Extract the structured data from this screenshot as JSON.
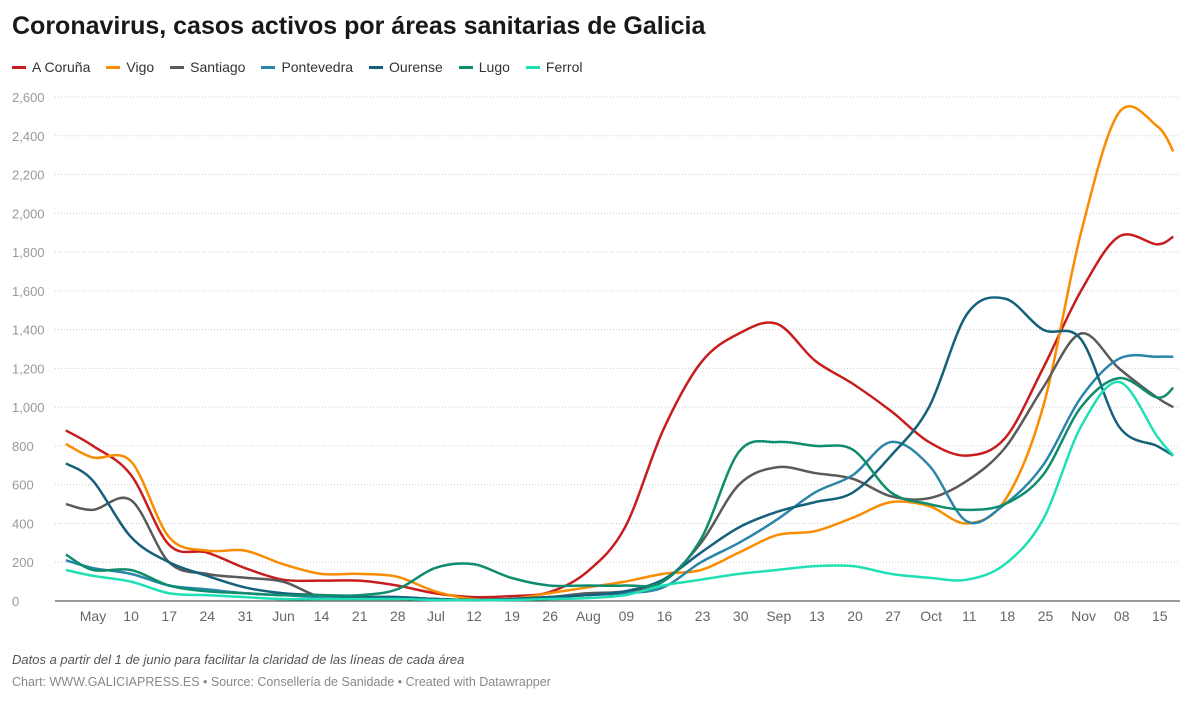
{
  "chart_data": {
    "type": "line",
    "title": "Coronavirus, casos activos por áreas sanitarias de Galicia",
    "note": "Datos a partir del 1 de junio para facilitar la claridad de las líneas de cada área",
    "credit": "Chart: WWW.GALICIAPRESS.ES • Source: Consellería de Sanidade • Created with Datawrapper",
    "ylim": [
      0,
      2600
    ],
    "y_ticks": [
      "0",
      "200",
      "400",
      "600",
      "800",
      "1,000",
      "1,200",
      "1,400",
      "1,600",
      "1,800",
      "2,000",
      "2,200",
      "2,400",
      "2,600"
    ],
    "x_ticks": [
      "May",
      "10",
      "17",
      "24",
      "31",
      "Jun",
      "14",
      "21",
      "28",
      "Jul",
      "12",
      "19",
      "26",
      "Aug",
      "09",
      "16",
      "23",
      "30",
      "Sep",
      "13",
      "20",
      "27",
      "Oct",
      "11",
      "18",
      "25",
      "Nov",
      "08",
      "15"
    ],
    "grid": true,
    "legend_placement": "top-left",
    "x": [
      "2020-04-28",
      "2020-05-03",
      "2020-05-10",
      "2020-05-17",
      "2020-05-24",
      "2020-05-31",
      "2020-06-07",
      "2020-06-14",
      "2020-06-21",
      "2020-06-28",
      "2020-07-05",
      "2020-07-12",
      "2020-07-19",
      "2020-07-26",
      "2020-08-02",
      "2020-08-09",
      "2020-08-16",
      "2020-08-23",
      "2020-08-30",
      "2020-09-06",
      "2020-09-13",
      "2020-09-20",
      "2020-09-27",
      "2020-10-04",
      "2020-10-11",
      "2020-10-18",
      "2020-10-25",
      "2020-11-01",
      "2020-11-08",
      "2020-11-15",
      "2020-11-18"
    ],
    "series": [
      {
        "name": "A Coruña",
        "color": "#c71e1d",
        "values": [
          880,
          800,
          650,
          290,
          250,
          170,
          110,
          105,
          105,
          80,
          40,
          20,
          25,
          45,
          150,
          380,
          880,
          1230,
          1380,
          1430,
          1240,
          1120,
          980,
          820,
          750,
          840,
          1200,
          1600,
          1880,
          1840,
          1880
        ]
      },
      {
        "name": "Vigo",
        "color": "#fa8c00",
        "values": [
          810,
          740,
          720,
          330,
          260,
          260,
          190,
          140,
          140,
          125,
          50,
          10,
          10,
          40,
          70,
          100,
          140,
          160,
          250,
          340,
          360,
          430,
          510,
          490,
          400,
          520,
          1000,
          1900,
          2520,
          2450,
          2320
        ]
      },
      {
        "name": "Santiago",
        "color": "#5a5a5a",
        "values": [
          500,
          470,
          520,
          200,
          140,
          120,
          100,
          20,
          20,
          20,
          10,
          5,
          10,
          20,
          40,
          50,
          100,
          300,
          600,
          690,
          660,
          630,
          540,
          530,
          620,
          790,
          1100,
          1380,
          1200,
          1050,
          1000
        ]
      },
      {
        "name": "Pontevedra",
        "color": "#2a85a8",
        "values": [
          210,
          170,
          140,
          80,
          60,
          40,
          30,
          20,
          20,
          20,
          10,
          5,
          10,
          20,
          30,
          40,
          70,
          200,
          300,
          420,
          560,
          650,
          820,
          700,
          410,
          500,
          700,
          1050,
          1250,
          1260,
          1260
        ]
      },
      {
        "name": "Ourense",
        "color": "#15607a",
        "values": [
          710,
          620,
          330,
          200,
          130,
          70,
          40,
          30,
          20,
          20,
          10,
          5,
          10,
          20,
          30,
          50,
          110,
          250,
          380,
          460,
          510,
          560,
          750,
          1000,
          1480,
          1560,
          1400,
          1350,
          900,
          800,
          750
        ]
      },
      {
        "name": "Lugo",
        "color": "#0e8c6e",
        "values": [
          240,
          160,
          160,
          80,
          50,
          40,
          30,
          30,
          30,
          60,
          170,
          190,
          120,
          80,
          80,
          80,
          100,
          320,
          770,
          820,
          800,
          780,
          560,
          500,
          470,
          500,
          650,
          1000,
          1150,
          1050,
          1100
        ]
      },
      {
        "name": "Ferrol",
        "color": "#1fe0b4",
        "values": [
          160,
          130,
          100,
          40,
          30,
          20,
          10,
          10,
          10,
          10,
          5,
          5,
          5,
          10,
          15,
          30,
          80,
          110,
          140,
          160,
          180,
          180,
          140,
          120,
          110,
          190,
          420,
          900,
          1130,
          850,
          750
        ]
      }
    ]
  }
}
